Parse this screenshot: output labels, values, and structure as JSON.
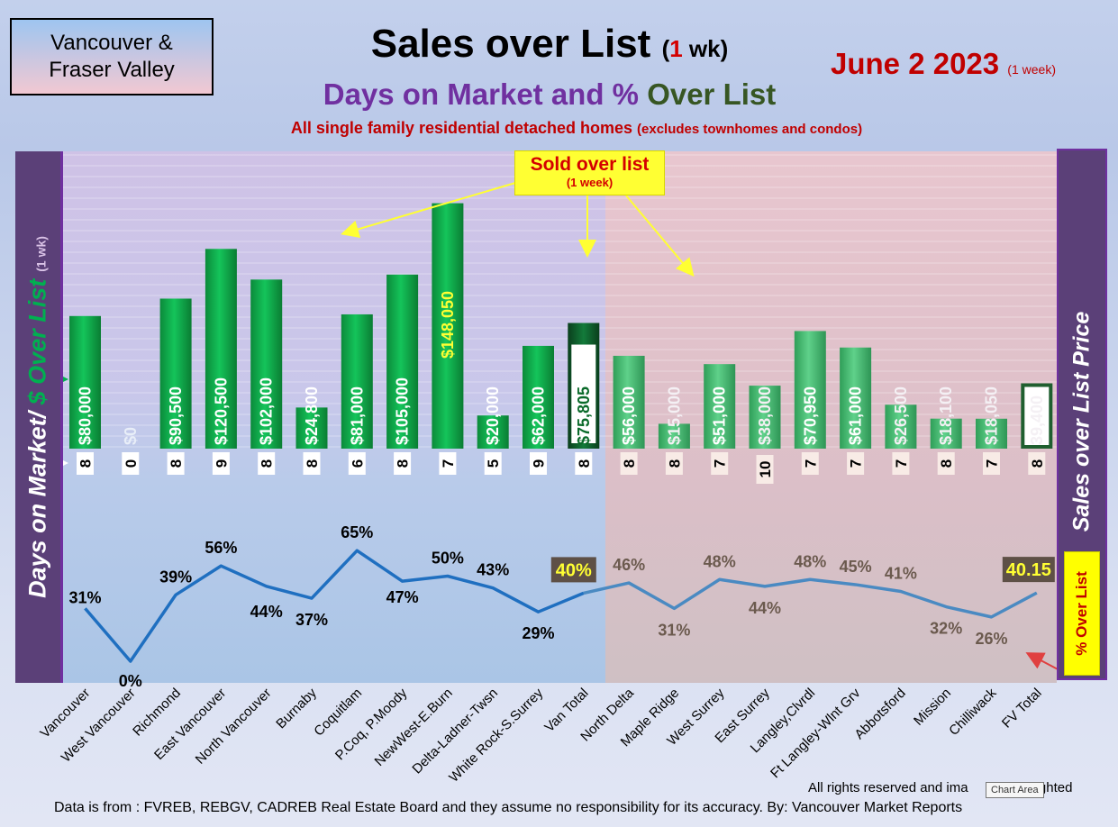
{
  "header": {
    "region_line1": "Vancouver &",
    "region_line2": "Fraser Valley",
    "title": "Sales over List",
    "title_wk_open": "(",
    "title_wk_num": "1",
    "title_wk_close": " wk)",
    "subtitle_a": "Days on Market and % ",
    "subtitle_b": "Over List",
    "subtitle2": "All single family residential detached homes ",
    "subtitle2_small": "(excludes townhomes and condos)",
    "date": "June 2  2023 ",
    "date_small": "(1 week)"
  },
  "callout": {
    "line1": "Sold over list",
    "line2": "(1 week)"
  },
  "left_axis": {
    "part1": "Days on Market/ ",
    "part2": "$ Over List",
    "part3": "(1 wk)"
  },
  "right_axis": {
    "label": "Sales over List Price",
    "pct_label": "% Over List"
  },
  "footer": {
    "rights": "All rights reserved and  ima",
    "rights_tail": "righted",
    "tooltip": "Chart Area",
    "source": "Data is from : FVREB, REBGV, CADREB Real Estate Board and they assume no responsibility for its accuracy. By: Vancouver Market Reports"
  },
  "colors": {
    "bar_green": "#00a040",
    "bar_light_green": "#3bb86a",
    "total_bar": "#0d5a2a",
    "line_van": "#1f6fc0",
    "line_fv": "#4a8ac2",
    "fv_shade": "#d8b6b8"
  },
  "chart_data": {
    "type": "bar",
    "categories": [
      "Vancouver",
      "West Vancouver",
      "Richmond",
      "East Vancouver",
      "North Vancouver",
      "Burnaby",
      "Coquitlam",
      "P.Coq, P.Moody",
      "NewWest-E.Burn",
      "Delta-Ladner-Twsn",
      "White Rock-S.Surrey",
      "Van Total",
      "North Delta",
      "Maple Ridge",
      "West Surrey",
      "East Surrey",
      "Langley,Clvrdl",
      "Ft Langley-Wlnt Grv",
      "Abbotsford",
      "Mission",
      "Chilliwack",
      "FV Total"
    ],
    "series": [
      {
        "name": "$ Over List",
        "values": [
          80000,
          0,
          90500,
          120500,
          102000,
          24800,
          81000,
          105000,
          148050,
          20000,
          62000,
          75805,
          56000,
          15000,
          51000,
          38000,
          70950,
          61000,
          26500,
          18100,
          18050,
          39400
        ],
        "labels": [
          "$80,000",
          "$0",
          "$90,500",
          "$120,500",
          "$102,000",
          "$24,800",
          "$81,000",
          "$105,000",
          "$148,050",
          "$20,000",
          "$62,000",
          "$75,805",
          "$56,000",
          "$15,000",
          "$51,000",
          "$38,000",
          "$70,950",
          "$61,000",
          "$26,500",
          "$18,100",
          "$18,050",
          "39,400"
        ]
      },
      {
        "name": "Days on Market",
        "values": [
          8,
          0,
          8,
          9,
          8,
          8,
          6,
          8,
          7,
          5,
          9,
          8,
          8,
          8,
          7,
          10,
          7,
          7,
          7,
          8,
          7,
          8
        ]
      },
      {
        "name": "% Over List",
        "values": [
          31,
          0,
          39,
          56,
          44,
          37,
          65,
          47,
          50,
          43,
          29,
          40,
          46,
          31,
          48,
          44,
          48,
          45,
          41,
          32,
          26,
          40.15
        ],
        "labels": [
          "31%",
          "0%",
          "39%",
          "56%",
          "44%",
          "37%",
          "65%",
          "47%",
          "50%",
          "43%",
          "29%",
          "40%",
          "46%",
          "31%",
          "48%",
          "44%",
          "48%",
          "45%",
          "41%",
          "32%",
          "26%",
          "40.15"
        ]
      }
    ]
  }
}
